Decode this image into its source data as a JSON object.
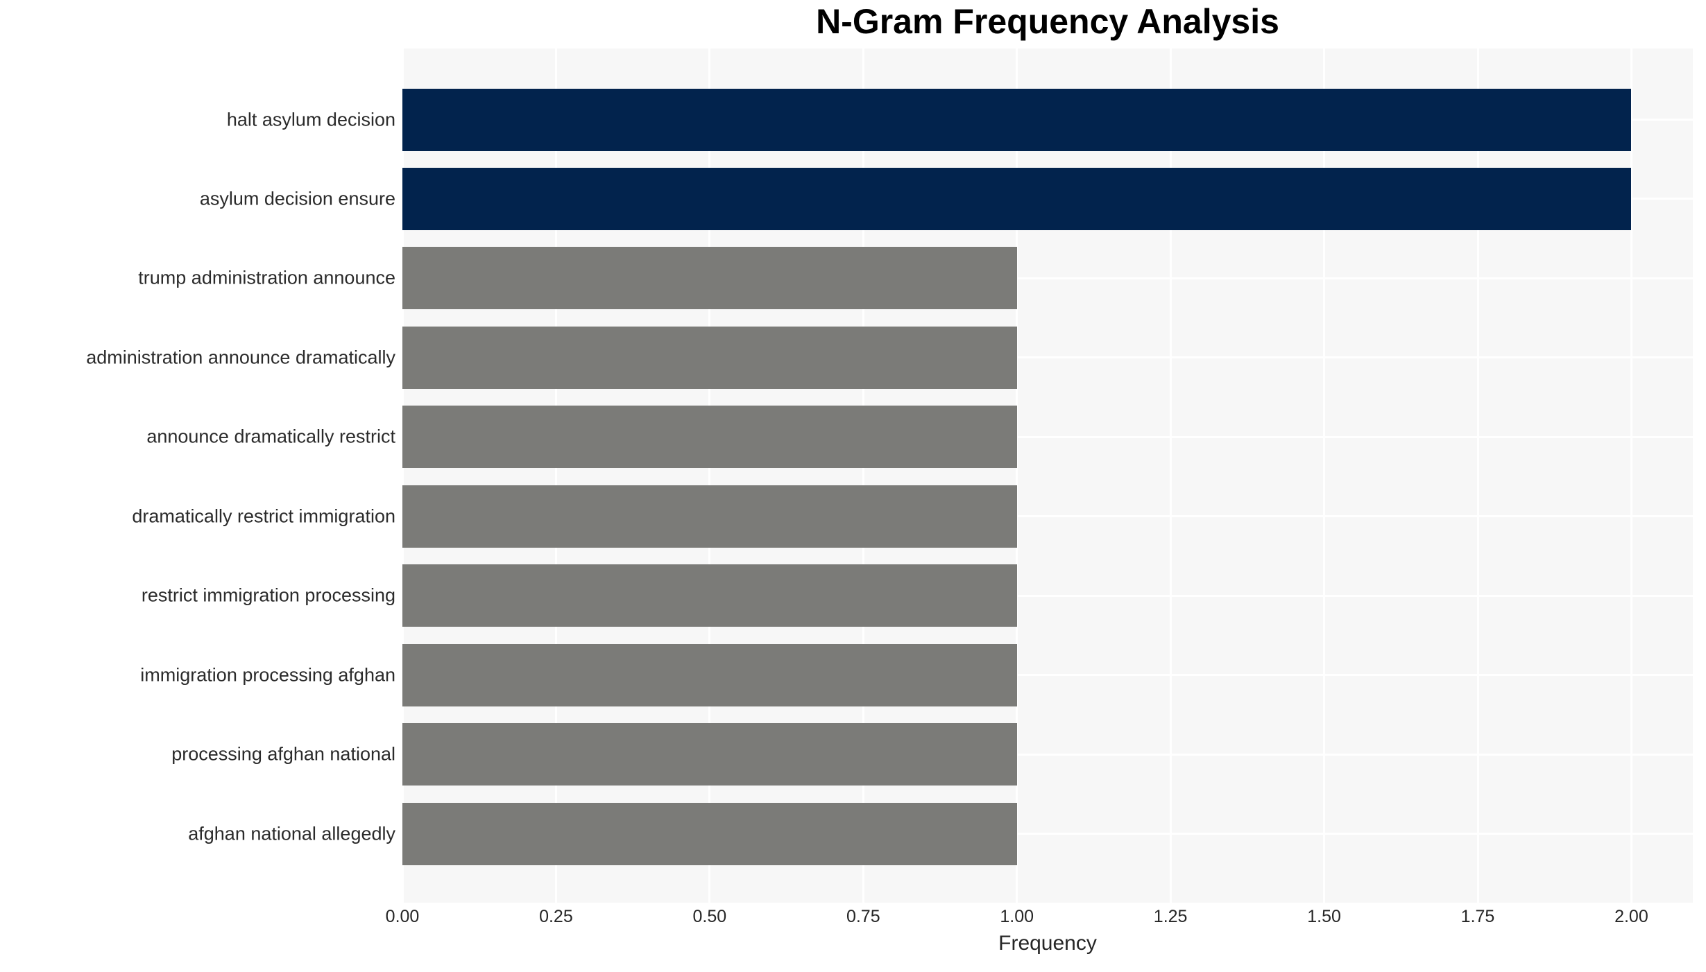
{
  "figure": {
    "title": "N-Gram Frequency Analysis",
    "xlabel": "Frequency"
  },
  "chart_data": {
    "type": "bar",
    "orientation": "horizontal",
    "title": "N-Gram Frequency Analysis",
    "xlabel": "Frequency",
    "ylabel": "",
    "categories": [
      "halt asylum decision",
      "asylum decision ensure",
      "trump administration announce",
      "administration announce dramatically",
      "announce dramatically restrict",
      "dramatically restrict immigration",
      "restrict immigration processing",
      "immigration processing afghan",
      "processing afghan national",
      "afghan national allegedly"
    ],
    "values": [
      2,
      2,
      1,
      1,
      1,
      1,
      1,
      1,
      1,
      1
    ],
    "bar_colors": [
      "#02234d",
      "#02234d",
      "#7b7b78",
      "#7b7b78",
      "#7b7b78",
      "#7b7b78",
      "#7b7b78",
      "#7b7b78",
      "#7b7b78",
      "#7b7b78"
    ],
    "x_ticks": [
      "0.00",
      "0.25",
      "0.50",
      "0.75",
      "1.00",
      "1.25",
      "1.50",
      "1.75",
      "2.00"
    ],
    "x_tick_values": [
      0,
      0.25,
      0.5,
      0.75,
      1.0,
      1.25,
      1.5,
      1.75,
      2.0
    ],
    "xlim": [
      0,
      2.1
    ],
    "grid": true,
    "legend": "none",
    "colors": {
      "bar_high": "#02234d",
      "bar_low": "#7b7b78",
      "plot_background": "#f7f7f7",
      "grid_line": "#ffffff",
      "text": "#262626"
    }
  }
}
